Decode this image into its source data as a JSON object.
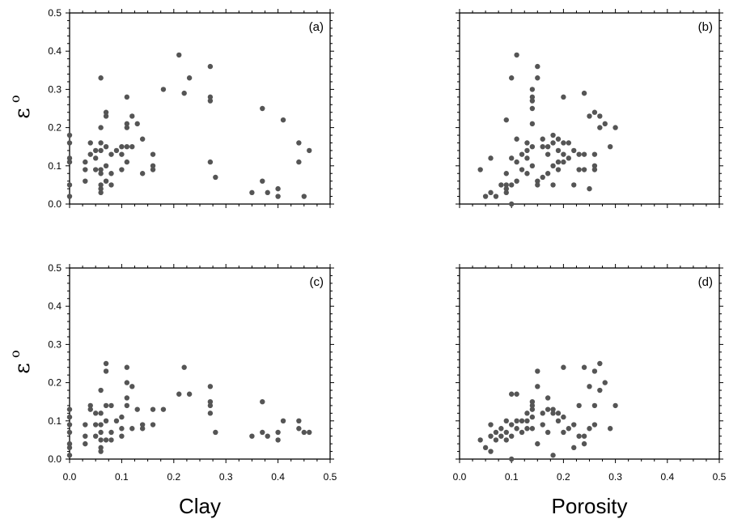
{
  "chart_data": [
    {
      "type": "scatter",
      "panel_label": "(a)",
      "ylabel": "ε",
      "ylabel_sup": "o",
      "xlim": [
        0,
        0.5
      ],
      "ylim": [
        0,
        0.5
      ],
      "xticks": [
        "0.0",
        "0.1",
        "0.2",
        "0.3",
        "0.4",
        "0.5"
      ],
      "yticks": [
        "0.0",
        "0.1",
        "0.2",
        "0.3",
        "0.4",
        "0.5"
      ],
      "show_xtick_labels": false,
      "show_ytick_labels": true,
      "point_color": "#555555",
      "points": [
        [
          0.0,
          0.18
        ],
        [
          0.0,
          0.16
        ],
        [
          0.0,
          0.12
        ],
        [
          0.0,
          0.11
        ],
        [
          0.0,
          0.05
        ],
        [
          0.0,
          0.02
        ],
        [
          0.03,
          0.11
        ],
        [
          0.03,
          0.09
        ],
        [
          0.03,
          0.06
        ],
        [
          0.04,
          0.16
        ],
        [
          0.04,
          0.13
        ],
        [
          0.05,
          0.14
        ],
        [
          0.05,
          0.12
        ],
        [
          0.05,
          0.09
        ],
        [
          0.06,
          0.33
        ],
        [
          0.06,
          0.2
        ],
        [
          0.06,
          0.16
        ],
        [
          0.06,
          0.14
        ],
        [
          0.06,
          0.09
        ],
        [
          0.06,
          0.08
        ],
        [
          0.06,
          0.05
        ],
        [
          0.06,
          0.04
        ],
        [
          0.06,
          0.03
        ],
        [
          0.07,
          0.24
        ],
        [
          0.07,
          0.23
        ],
        [
          0.07,
          0.15
        ],
        [
          0.07,
          0.1
        ],
        [
          0.07,
          0.06
        ],
        [
          0.08,
          0.13
        ],
        [
          0.08,
          0.08
        ],
        [
          0.08,
          0.05
        ],
        [
          0.09,
          0.14
        ],
        [
          0.1,
          0.15
        ],
        [
          0.1,
          0.13
        ],
        [
          0.1,
          0.09
        ],
        [
          0.11,
          0.28
        ],
        [
          0.11,
          0.21
        ],
        [
          0.11,
          0.2
        ],
        [
          0.11,
          0.15
        ],
        [
          0.11,
          0.11
        ],
        [
          0.12,
          0.23
        ],
        [
          0.12,
          0.15
        ],
        [
          0.13,
          0.21
        ],
        [
          0.14,
          0.17
        ],
        [
          0.14,
          0.08
        ],
        [
          0.16,
          0.13
        ],
        [
          0.16,
          0.1
        ],
        [
          0.16,
          0.09
        ],
        [
          0.18,
          0.3
        ],
        [
          0.21,
          0.39
        ],
        [
          0.22,
          0.29
        ],
        [
          0.23,
          0.33
        ],
        [
          0.27,
          0.36
        ],
        [
          0.27,
          0.28
        ],
        [
          0.27,
          0.27
        ],
        [
          0.27,
          0.11
        ],
        [
          0.28,
          0.07
        ],
        [
          0.35,
          0.03
        ],
        [
          0.37,
          0.25
        ],
        [
          0.37,
          0.06
        ],
        [
          0.38,
          0.03
        ],
        [
          0.4,
          0.04
        ],
        [
          0.4,
          0.02
        ],
        [
          0.41,
          0.22
        ],
        [
          0.44,
          0.16
        ],
        [
          0.44,
          0.11
        ],
        [
          0.45,
          0.02
        ],
        [
          0.46,
          0.14
        ]
      ]
    },
    {
      "type": "scatter",
      "panel_label": "(b)",
      "xlim": [
        0,
        0.5
      ],
      "ylim": [
        0,
        0.5
      ],
      "xticks": [
        "0.0",
        "0.1",
        "0.2",
        "0.3",
        "0.4",
        "0.5"
      ],
      "yticks": [
        "0.0",
        "0.1",
        "0.2",
        "0.3",
        "0.4",
        "0.5"
      ],
      "show_xtick_labels": false,
      "show_ytick_labels": false,
      "point_color": "#555555",
      "points": [
        [
          0.04,
          0.09
        ],
        [
          0.05,
          0.02
        ],
        [
          0.06,
          0.12
        ],
        [
          0.06,
          0.03
        ],
        [
          0.07,
          0.02
        ],
        [
          0.08,
          0.05
        ],
        [
          0.09,
          0.22
        ],
        [
          0.09,
          0.08
        ],
        [
          0.09,
          0.05
        ],
        [
          0.09,
          0.04
        ],
        [
          0.09,
          0.03
        ],
        [
          0.1,
          0.33
        ],
        [
          0.1,
          0.12
        ],
        [
          0.1,
          0.05
        ],
        [
          0.1,
          0.0
        ],
        [
          0.11,
          0.39
        ],
        [
          0.11,
          0.17
        ],
        [
          0.11,
          0.11
        ],
        [
          0.11,
          0.06
        ],
        [
          0.12,
          0.13
        ],
        [
          0.12,
          0.09
        ],
        [
          0.13,
          0.16
        ],
        [
          0.13,
          0.14
        ],
        [
          0.13,
          0.12
        ],
        [
          0.13,
          0.08
        ],
        [
          0.14,
          0.3
        ],
        [
          0.14,
          0.28
        ],
        [
          0.14,
          0.27
        ],
        [
          0.14,
          0.25
        ],
        [
          0.14,
          0.21
        ],
        [
          0.14,
          0.15
        ],
        [
          0.14,
          0.1
        ],
        [
          0.15,
          0.36
        ],
        [
          0.15,
          0.33
        ],
        [
          0.15,
          0.06
        ],
        [
          0.15,
          0.05
        ],
        [
          0.16,
          0.17
        ],
        [
          0.16,
          0.15
        ],
        [
          0.16,
          0.07
        ],
        [
          0.17,
          0.15
        ],
        [
          0.17,
          0.13
        ],
        [
          0.17,
          0.08
        ],
        [
          0.18,
          0.18
        ],
        [
          0.18,
          0.16
        ],
        [
          0.18,
          0.1
        ],
        [
          0.18,
          0.05
        ],
        [
          0.19,
          0.17
        ],
        [
          0.19,
          0.14
        ],
        [
          0.19,
          0.11
        ],
        [
          0.19,
          0.09
        ],
        [
          0.2,
          0.28
        ],
        [
          0.2,
          0.16
        ],
        [
          0.2,
          0.13
        ],
        [
          0.2,
          0.11
        ],
        [
          0.21,
          0.16
        ],
        [
          0.21,
          0.12
        ],
        [
          0.22,
          0.14
        ],
        [
          0.22,
          0.05
        ],
        [
          0.23,
          0.13
        ],
        [
          0.23,
          0.09
        ],
        [
          0.24,
          0.29
        ],
        [
          0.24,
          0.13
        ],
        [
          0.24,
          0.09
        ],
        [
          0.25,
          0.23
        ],
        [
          0.25,
          0.04
        ],
        [
          0.26,
          0.24
        ],
        [
          0.26,
          0.13
        ],
        [
          0.26,
          0.1
        ],
        [
          0.26,
          0.09
        ],
        [
          0.27,
          0.23
        ],
        [
          0.27,
          0.2
        ],
        [
          0.28,
          0.21
        ],
        [
          0.29,
          0.15
        ],
        [
          0.3,
          0.2
        ]
      ]
    },
    {
      "type": "scatter",
      "panel_label": "(c)",
      "ylabel": "ε",
      "ylabel_sup": "o",
      "xlabel": "Clay",
      "xlim": [
        0,
        0.5
      ],
      "ylim": [
        0,
        0.5
      ],
      "xticks": [
        "0.0",
        "0.1",
        "0.2",
        "0.3",
        "0.4",
        "0.5"
      ],
      "yticks": [
        "0.0",
        "0.1",
        "0.2",
        "0.3",
        "0.4",
        "0.5"
      ],
      "show_xtick_labels": true,
      "show_ytick_labels": true,
      "point_color": "#555555",
      "points": [
        [
          0.0,
          0.13
        ],
        [
          0.0,
          0.11
        ],
        [
          0.0,
          0.09
        ],
        [
          0.0,
          0.07
        ],
        [
          0.0,
          0.04
        ],
        [
          0.0,
          0.03
        ],
        [
          0.0,
          0.01
        ],
        [
          0.03,
          0.09
        ],
        [
          0.03,
          0.06
        ],
        [
          0.03,
          0.04
        ],
        [
          0.04,
          0.14
        ],
        [
          0.04,
          0.13
        ],
        [
          0.05,
          0.12
        ],
        [
          0.05,
          0.09
        ],
        [
          0.05,
          0.06
        ],
        [
          0.06,
          0.18
        ],
        [
          0.06,
          0.12
        ],
        [
          0.06,
          0.09
        ],
        [
          0.06,
          0.07
        ],
        [
          0.06,
          0.05
        ],
        [
          0.06,
          0.03
        ],
        [
          0.06,
          0.02
        ],
        [
          0.07,
          0.25
        ],
        [
          0.07,
          0.23
        ],
        [
          0.07,
          0.14
        ],
        [
          0.07,
          0.1
        ],
        [
          0.07,
          0.05
        ],
        [
          0.08,
          0.14
        ],
        [
          0.08,
          0.07
        ],
        [
          0.08,
          0.05
        ],
        [
          0.09,
          0.1
        ],
        [
          0.1,
          0.11
        ],
        [
          0.1,
          0.08
        ],
        [
          0.1,
          0.06
        ],
        [
          0.11,
          0.24
        ],
        [
          0.11,
          0.2
        ],
        [
          0.11,
          0.16
        ],
        [
          0.11,
          0.14
        ],
        [
          0.12,
          0.19
        ],
        [
          0.12,
          0.08
        ],
        [
          0.13,
          0.13
        ],
        [
          0.14,
          0.09
        ],
        [
          0.14,
          0.08
        ],
        [
          0.16,
          0.13
        ],
        [
          0.16,
          0.09
        ],
        [
          0.18,
          0.13
        ],
        [
          0.21,
          0.17
        ],
        [
          0.22,
          0.24
        ],
        [
          0.23,
          0.17
        ],
        [
          0.27,
          0.19
        ],
        [
          0.27,
          0.15
        ],
        [
          0.27,
          0.14
        ],
        [
          0.27,
          0.12
        ],
        [
          0.28,
          0.07
        ],
        [
          0.35,
          0.06
        ],
        [
          0.37,
          0.15
        ],
        [
          0.37,
          0.07
        ],
        [
          0.38,
          0.06
        ],
        [
          0.4,
          0.07
        ],
        [
          0.4,
          0.05
        ],
        [
          0.41,
          0.1
        ],
        [
          0.44,
          0.1
        ],
        [
          0.44,
          0.08
        ],
        [
          0.45,
          0.07
        ],
        [
          0.46,
          0.07
        ]
      ]
    },
    {
      "type": "scatter",
      "panel_label": "(d)",
      "xlabel": "Porosity",
      "xlim": [
        0,
        0.5
      ],
      "ylim": [
        0,
        0.5
      ],
      "xticks": [
        "0.0",
        "0.1",
        "0.2",
        "0.3",
        "0.4",
        "0.5"
      ],
      "yticks": [
        "0.0",
        "0.1",
        "0.2",
        "0.3",
        "0.4",
        "0.5"
      ],
      "show_xtick_labels": true,
      "show_ytick_labels": false,
      "point_color": "#555555",
      "points": [
        [
          0.04,
          0.05
        ],
        [
          0.05,
          0.03
        ],
        [
          0.06,
          0.09
        ],
        [
          0.06,
          0.06
        ],
        [
          0.06,
          0.02
        ],
        [
          0.07,
          0.07
        ],
        [
          0.07,
          0.05
        ],
        [
          0.08,
          0.08
        ],
        [
          0.08,
          0.06
        ],
        [
          0.09,
          0.1
        ],
        [
          0.09,
          0.07
        ],
        [
          0.09,
          0.05
        ],
        [
          0.1,
          0.17
        ],
        [
          0.1,
          0.09
        ],
        [
          0.1,
          0.06
        ],
        [
          0.1,
          0.0
        ],
        [
          0.11,
          0.17
        ],
        [
          0.11,
          0.1
        ],
        [
          0.11,
          0.08
        ],
        [
          0.12,
          0.1
        ],
        [
          0.12,
          0.07
        ],
        [
          0.13,
          0.12
        ],
        [
          0.13,
          0.1
        ],
        [
          0.13,
          0.08
        ],
        [
          0.14,
          0.15
        ],
        [
          0.14,
          0.14
        ],
        [
          0.14,
          0.13
        ],
        [
          0.14,
          0.11
        ],
        [
          0.14,
          0.08
        ],
        [
          0.15,
          0.23
        ],
        [
          0.15,
          0.19
        ],
        [
          0.15,
          0.04
        ],
        [
          0.16,
          0.12
        ],
        [
          0.16,
          0.09
        ],
        [
          0.17,
          0.16
        ],
        [
          0.17,
          0.13
        ],
        [
          0.17,
          0.07
        ],
        [
          0.18,
          0.13
        ],
        [
          0.18,
          0.12
        ],
        [
          0.18,
          0.01
        ],
        [
          0.19,
          0.12
        ],
        [
          0.19,
          0.1
        ],
        [
          0.2,
          0.24
        ],
        [
          0.2,
          0.11
        ],
        [
          0.2,
          0.07
        ],
        [
          0.21,
          0.08
        ],
        [
          0.22,
          0.09
        ],
        [
          0.22,
          0.03
        ],
        [
          0.23,
          0.14
        ],
        [
          0.23,
          0.06
        ],
        [
          0.24,
          0.24
        ],
        [
          0.24,
          0.06
        ],
        [
          0.24,
          0.04
        ],
        [
          0.25,
          0.19
        ],
        [
          0.25,
          0.08
        ],
        [
          0.26,
          0.23
        ],
        [
          0.26,
          0.14
        ],
        [
          0.26,
          0.09
        ],
        [
          0.27,
          0.25
        ],
        [
          0.27,
          0.18
        ],
        [
          0.28,
          0.2
        ],
        [
          0.29,
          0.08
        ],
        [
          0.3,
          0.14
        ]
      ]
    }
  ]
}
